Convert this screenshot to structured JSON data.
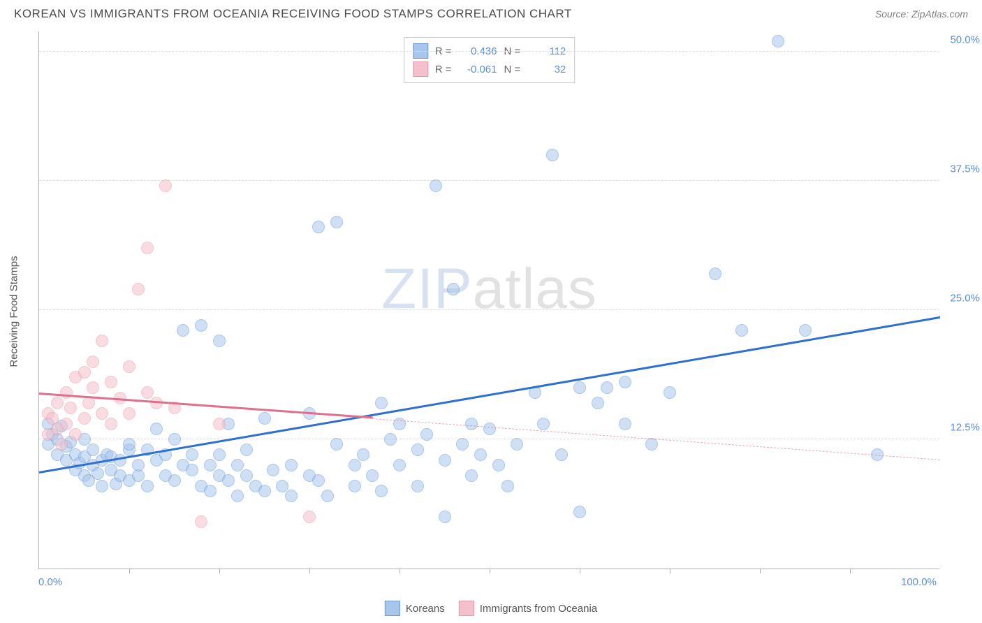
{
  "title": "KOREAN VS IMMIGRANTS FROM OCEANIA RECEIVING FOOD STAMPS CORRELATION CHART",
  "source_label": "Source: ",
  "source_name": "ZipAtlas.com",
  "yaxis_title": "Receiving Food Stamps",
  "watermark_a": "ZIP",
  "watermark_b": "atlas",
  "chart": {
    "type": "scatter",
    "xlim": [
      0,
      100
    ],
    "ylim": [
      0,
      52
    ],
    "xaxis_min_label": "0.0%",
    "xaxis_max_label": "100.0%",
    "xtick_positions": [
      10,
      20,
      30,
      40,
      50,
      60,
      70,
      80,
      90
    ],
    "yticks": [
      {
        "v": 12.5,
        "label": "12.5%"
      },
      {
        "v": 25.0,
        "label": "25.0%"
      },
      {
        "v": 37.5,
        "label": "37.5%"
      },
      {
        "v": 50.0,
        "label": "50.0%"
      }
    ],
    "background_color": "#ffffff",
    "grid_color": "#dcdcdc",
    "axis_color": "#b0b0b0",
    "label_color": "#5b8fd6",
    "point_radius": 9,
    "point_opacity": 0.55,
    "series": [
      {
        "name": "Koreans",
        "fill": "#a8c6ec",
        "stroke": "#6a9bd8",
        "trend_color": "#2f6fd0",
        "trend_width": 3,
        "R": "0.436",
        "N": "112",
        "trend": {
          "x1": 0,
          "y1": 9.2,
          "x2": 100,
          "y2": 24.2
        },
        "points": [
          [
            1,
            14
          ],
          [
            1,
            12
          ],
          [
            1.5,
            13
          ],
          [
            2,
            11
          ],
          [
            2,
            12.5
          ],
          [
            2.5,
            13.8
          ],
          [
            3,
            10.5
          ],
          [
            3,
            11.8
          ],
          [
            3.5,
            12.2
          ],
          [
            4,
            9.5
          ],
          [
            4,
            11
          ],
          [
            4.5,
            10.2
          ],
          [
            5,
            9
          ],
          [
            5,
            10.8
          ],
          [
            5,
            12.5
          ],
          [
            5.5,
            8.5
          ],
          [
            6,
            10
          ],
          [
            6,
            11.5
          ],
          [
            6.5,
            9.2
          ],
          [
            7,
            10.5
          ],
          [
            7,
            8
          ],
          [
            7.5,
            11
          ],
          [
            8,
            9.5
          ],
          [
            8,
            10.8
          ],
          [
            8.5,
            8.2
          ],
          [
            9,
            9
          ],
          [
            9,
            10.5
          ],
          [
            10,
            11.5
          ],
          [
            10,
            8.5
          ],
          [
            10,
            12
          ],
          [
            11,
            9
          ],
          [
            11,
            10
          ],
          [
            12,
            11.5
          ],
          [
            12,
            8
          ],
          [
            13,
            10.5
          ],
          [
            13,
            13.5
          ],
          [
            14,
            9
          ],
          [
            14,
            11
          ],
          [
            15,
            12.5
          ],
          [
            15,
            8.5
          ],
          [
            16,
            10
          ],
          [
            16,
            23
          ],
          [
            17,
            9.5
          ],
          [
            17,
            11
          ],
          [
            18,
            23.5
          ],
          [
            18,
            8
          ],
          [
            19,
            10
          ],
          [
            19,
            7.5
          ],
          [
            20,
            22
          ],
          [
            20,
            9
          ],
          [
            20,
            11
          ],
          [
            21,
            8.5
          ],
          [
            21,
            14
          ],
          [
            22,
            7
          ],
          [
            22,
            10
          ],
          [
            23,
            9
          ],
          [
            23,
            11.5
          ],
          [
            24,
            8
          ],
          [
            25,
            7.5
          ],
          [
            25,
            14.5
          ],
          [
            26,
            9.5
          ],
          [
            27,
            8
          ],
          [
            28,
            10
          ],
          [
            28,
            7
          ],
          [
            30,
            9
          ],
          [
            30,
            15
          ],
          [
            31,
            33
          ],
          [
            31,
            8.5
          ],
          [
            32,
            7
          ],
          [
            33,
            33.5
          ],
          [
            33,
            12
          ],
          [
            35,
            10
          ],
          [
            35,
            8
          ],
          [
            36,
            11
          ],
          [
            37,
            9
          ],
          [
            38,
            16
          ],
          [
            38,
            7.5
          ],
          [
            39,
            12.5
          ],
          [
            40,
            14
          ],
          [
            40,
            10
          ],
          [
            42,
            8
          ],
          [
            42,
            11.5
          ],
          [
            43,
            13
          ],
          [
            44,
            37
          ],
          [
            45,
            10.5
          ],
          [
            45,
            5
          ],
          [
            46,
            27
          ],
          [
            47,
            12
          ],
          [
            48,
            9
          ],
          [
            48,
            14
          ],
          [
            49,
            11
          ],
          [
            50,
            13.5
          ],
          [
            51,
            10
          ],
          [
            52,
            8
          ],
          [
            53,
            12
          ],
          [
            55,
            17
          ],
          [
            56,
            14
          ],
          [
            57,
            40
          ],
          [
            58,
            11
          ],
          [
            60,
            17.5
          ],
          [
            60,
            5.5
          ],
          [
            62,
            16
          ],
          [
            63,
            17.5
          ],
          [
            65,
            14
          ],
          [
            65,
            18
          ],
          [
            68,
            12
          ],
          [
            70,
            17
          ],
          [
            75,
            28.5
          ],
          [
            78,
            23
          ],
          [
            82,
            51
          ],
          [
            85,
            23
          ],
          [
            93,
            11
          ]
        ]
      },
      {
        "name": "Immigrants from Oceania",
        "fill": "#f4c0cb",
        "stroke": "#e89aad",
        "trend_color": "#e06f8b",
        "trend_width": 3,
        "trend_dash_after": 37,
        "R": "-0.061",
        "N": "32",
        "trend": {
          "x1": 0,
          "y1": 16.8,
          "x2": 100,
          "y2": 10.5
        },
        "points": [
          [
            1,
            13
          ],
          [
            1,
            15
          ],
          [
            1.5,
            14.5
          ],
          [
            2,
            13.5
          ],
          [
            2,
            16
          ],
          [
            2.5,
            12
          ],
          [
            3,
            17
          ],
          [
            3,
            14
          ],
          [
            3.5,
            15.5
          ],
          [
            4,
            18.5
          ],
          [
            4,
            13
          ],
          [
            5,
            19
          ],
          [
            5,
            14.5
          ],
          [
            5.5,
            16
          ],
          [
            6,
            20
          ],
          [
            6,
            17.5
          ],
          [
            7,
            15
          ],
          [
            7,
            22
          ],
          [
            8,
            18
          ],
          [
            8,
            14
          ],
          [
            9,
            16.5
          ],
          [
            10,
            19.5
          ],
          [
            10,
            15
          ],
          [
            11,
            27
          ],
          [
            12,
            17
          ],
          [
            12,
            31
          ],
          [
            13,
            16
          ],
          [
            14,
            37
          ],
          [
            15,
            15.5
          ],
          [
            18,
            4.5
          ],
          [
            20,
            14
          ],
          [
            30,
            5
          ]
        ]
      }
    ]
  },
  "legend_bottom": [
    {
      "label": "Koreans",
      "fill": "#a8c6ec",
      "stroke": "#6a9bd8"
    },
    {
      "label": "Immigrants from Oceania",
      "fill": "#f4c0cb",
      "stroke": "#e89aad"
    }
  ]
}
